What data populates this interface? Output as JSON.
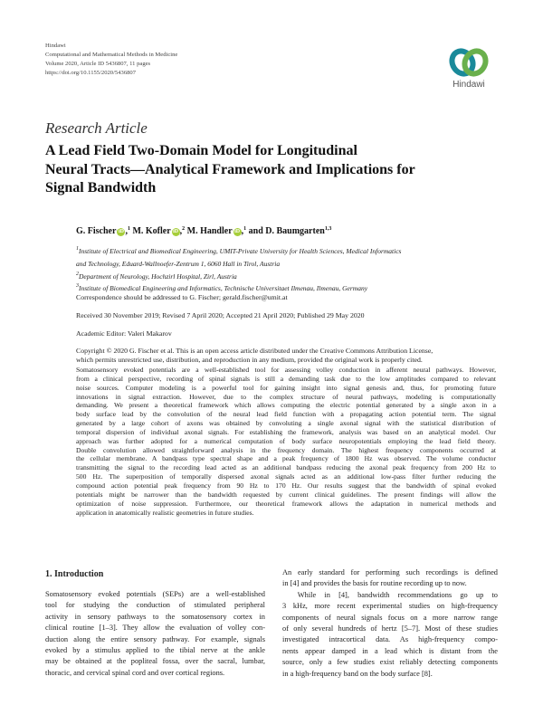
{
  "header": {
    "publisher": "Hindawi",
    "journal": "Computational and Mathematical Methods in Medicine",
    "volume": "Volume 2020, Article ID 5436807, 11 pages",
    "doi": "https://doi.org/10.1155/2020/5436807",
    "logo_text": "Hindawi",
    "logo_colors": [
      "#1a8a9a",
      "#6ab04c"
    ]
  },
  "article_type": "Research Article",
  "title_lines": [
    "A Lead Field Two-Domain Model for Longitudinal",
    "Neural Tracts—Analytical Framework and Implications for",
    "Signal Bandwidth"
  ],
  "authors": [
    {
      "name": "G. Fischer",
      "orcid": true,
      "aff": "1"
    },
    {
      "name": "M. Kofler",
      "orcid": true,
      "aff": "2"
    },
    {
      "name": "M. Handler",
      "orcid": true,
      "aff": "1"
    },
    {
      "name": "and D. Baumgarten",
      "orcid": false,
      "aff": "1,3"
    }
  ],
  "affiliations": [
    {
      "num": "1",
      "text": "Institute of Electrical and Biomedical Engineering, UMIT-Private University for Health Sciences, Medical Informatics"
    },
    {
      "num": "",
      "text": " and Technology, Eduard-Wallnoefer-Zentrum 1, 6060 Hall in Tirol, Austria"
    },
    {
      "num": "2",
      "text": "Department of Neurology, Hochzirl Hospital, Zirl, Austria"
    },
    {
      "num": "3",
      "text": "Institute of Biomedical Engineering and Informatics, Technische Universitaet Ilmenau, Ilmenau, Germany"
    }
  ],
  "correspondence": "Correspondence should be addressed to G. Fischer; gerald.fischer@umit.at",
  "dates": "Received 30 November 2019; Revised 7 April 2020; Accepted 21 April 2020; Published 29 May 2020",
  "editor": "Academic Editor: Valeri Makarov",
  "copyright_lines": [
    "Copyright © 2020 G. Fischer et al. This is an open access article distributed under the Creative Commons Attribution License,",
    "which permits unrestricted use, distribution, and reproduction in any medium, provided the original work is properly cited."
  ],
  "abstract_lines": [
    "Somatosensory evoked potentials are a well-established tool for assessing volley conduction in afferent neural pathways. However,",
    "from a clinical perspective, recording of spinal signals is still a demanding task due to the low amplitudes compared to relevant",
    "noise sources. Computer modeling is a powerful tool for gaining insight into signal genesis and, thus, for promoting future",
    "innovations in signal extraction. However, due to the complex structure of neural pathways, modeling is computationally",
    "demanding. We present a theoretical framework which allows computing the electric potential generated by a single axon in a",
    "body surface lead by the convolution of the neural lead field function with a propagating action potential term. The signal",
    "generated by a large cohort of axons was obtained by convoluting a single axonal signal with the statistical distribution of",
    "temporal dispersion of individual axonal signals. For establishing the framework, analysis was based on an analytical model. Our",
    "approach was further adopted for a numerical computation of body surface neuropotentials employing the lead field theory.",
    "Double convolution allowed straightforward analysis in the frequency domain. The highest frequency components occurred at",
    "the cellular membrane. A bandpass type spectral shape and a peak frequency of 1800 Hz was observed. The volume conductor",
    "transmitting the signal to the recording lead acted as an additional bandpass reducing the axonal peak frequency from 200 Hz to",
    "500 Hz. The superposition of temporally dispersed axonal signals acted as an additional low-pass filter further reducing the",
    "compound action potential peak frequency from 90 Hz to 170 Hz. Our results suggest that the bandwidth of spinal evoked",
    "potentials might be narrower than the bandwidth requested by current clinical guidelines. The present findings will allow the",
    "optimization of noise suppression. Furthermore, our theoretical framework allows the adaptation in numerical methods and",
    "application in anatomically realistic geometries in future studies."
  ],
  "intro": {
    "heading": "1. Introduction",
    "left_lines": [
      "Somatosensory evoked potentials (SEPs) are a well-established",
      "tool for studying the conduction of stimulated peripheral",
      "activity in sensory pathways to the somatosensory cortex in",
      "clinical routine [1–3]. They allow the evaluation of volley con-",
      "duction along the entire sensory pathway. For example, signals",
      "evoked by a stimulus applied to the tibial nerve at the ankle",
      "may be obtained at the popliteal fossa, over the sacral, lumbar,",
      "thoracic, and cervical spinal cord and over cortical regions."
    ],
    "right_lines": [
      "An early standard for performing such recordings is defined",
      "in [4] and provides the basis for routine recording up to now.",
      "  While in [4], bandwidth recommendations go up to",
      "3 kHz, more recent experimental studies on high-frequency",
      "components of neural signals focus on a more narrow range",
      "of only several hundreds of hertz [5–7]. Most of these studies",
      "investigated intracortical data. As high-frequency compo-",
      "nents appear damped in a lead which is distant from the",
      "source, only a few studies exist reliably detecting components",
      "in a high-frequency band on the body surface [8]."
    ],
    "right_last_indices": [
      1,
      9
    ]
  }
}
